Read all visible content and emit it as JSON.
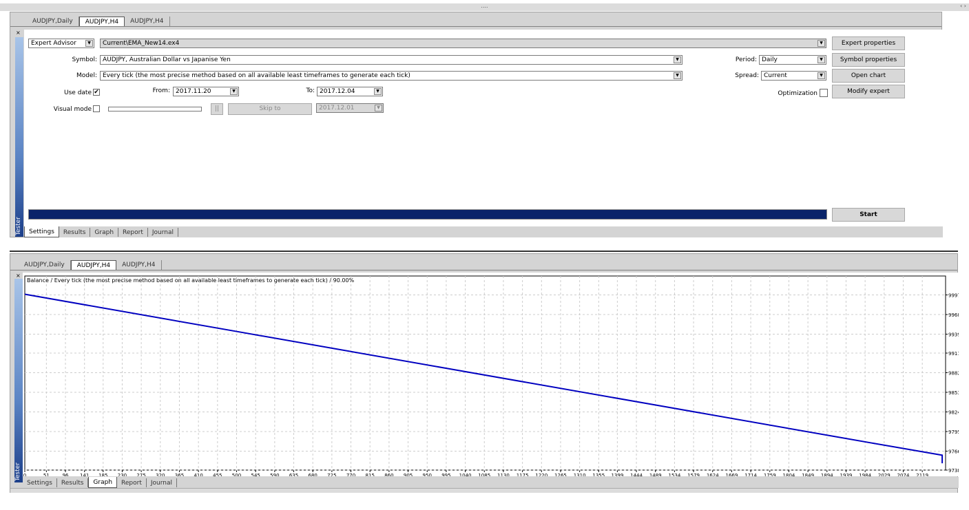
{
  "topbar": {
    "grip": "....",
    "arrows": "‹ ›"
  },
  "upper": {
    "chart_tabs": [
      "AUDJPY,Daily",
      "AUDJPY,H4",
      "AUDJPY,H4"
    ],
    "active_chart_tab": 1,
    "close": "×",
    "sidebar_label": "Tester",
    "type_select": "Expert Advisor",
    "expert_file": "Current\\EMA_New14.ex4",
    "symbol_label": "Symbol:",
    "symbol_value": "AUDJPY, Australian Dollar vs Japanise Yen",
    "model_label": "Model:",
    "model_value": "Every tick (the most precise method based on all available least timeframes to generate each tick)",
    "use_date_label": "Use date",
    "use_date_checked": true,
    "check_mark": "✔",
    "from_label": "From:",
    "from_value": "2017.11.20",
    "to_label": "To:",
    "to_value": "2017.12.04",
    "visual_mode_label": "Visual mode",
    "visual_mode_checked": false,
    "pause_label": "||",
    "skip_to_label": "Skip to",
    "skip_to_date": "2017.12.01",
    "period_label": "Period:",
    "period_value": "Daily",
    "spread_label": "Spread:",
    "spread_value": "Current",
    "optimization_label": "Optimization",
    "optimization_checked": false,
    "buttons": {
      "expert_properties": "Expert properties",
      "symbol_properties": "Symbol properties",
      "open_chart": "Open chart",
      "modify_expert": "Modify expert",
      "start": "Start"
    },
    "progress": 100,
    "progress_color": "#0a246a",
    "bottom_tabs": [
      "Settings",
      "Results",
      "Graph",
      "Report",
      "Journal"
    ],
    "active_bottom_tab": 0
  },
  "lower": {
    "chart_tabs": [
      "AUDJPY,Daily",
      "AUDJPY,H4",
      "AUDJPY,H4"
    ],
    "active_chart_tab": 1,
    "close": "×",
    "sidebar_label": "Tester",
    "bottom_tabs": [
      "Settings",
      "Results",
      "Graph",
      "Report",
      "Journal"
    ],
    "active_bottom_tab": 2
  },
  "chart_data": {
    "type": "line",
    "title": "Balance / Every tick (the most precise method based on all available least timeframes to generate each tick) / 90.00%",
    "x_ticks": [
      0,
      51,
      96,
      141,
      185,
      230,
      275,
      320,
      365,
      410,
      455,
      500,
      545,
      590,
      635,
      680,
      725,
      770,
      815,
      860,
      905,
      950,
      995,
      1040,
      1085,
      1130,
      1175,
      1220,
      1265,
      1310,
      1355,
      1399,
      1444,
      1489,
      1534,
      1579,
      1624,
      1669,
      1714,
      1759,
      1804,
      1849,
      1894,
      1939,
      1984,
      2029,
      2074,
      2119
    ],
    "y_ticks": [
      9997,
      9968,
      9939,
      9911,
      9882,
      9853,
      9824,
      9795,
      9766,
      9738
    ],
    "xlim": [
      0,
      2174
    ],
    "ylim": [
      9738,
      10025
    ],
    "grid": true,
    "line_color": "#0000c0",
    "series": [
      {
        "x": [
          0,
          500,
          1000,
          1500,
          2000,
          2166,
          2166
        ],
        "y": [
          9998,
          9943,
          9888,
          9833,
          9778,
          9760,
          9748
        ]
      }
    ]
  }
}
